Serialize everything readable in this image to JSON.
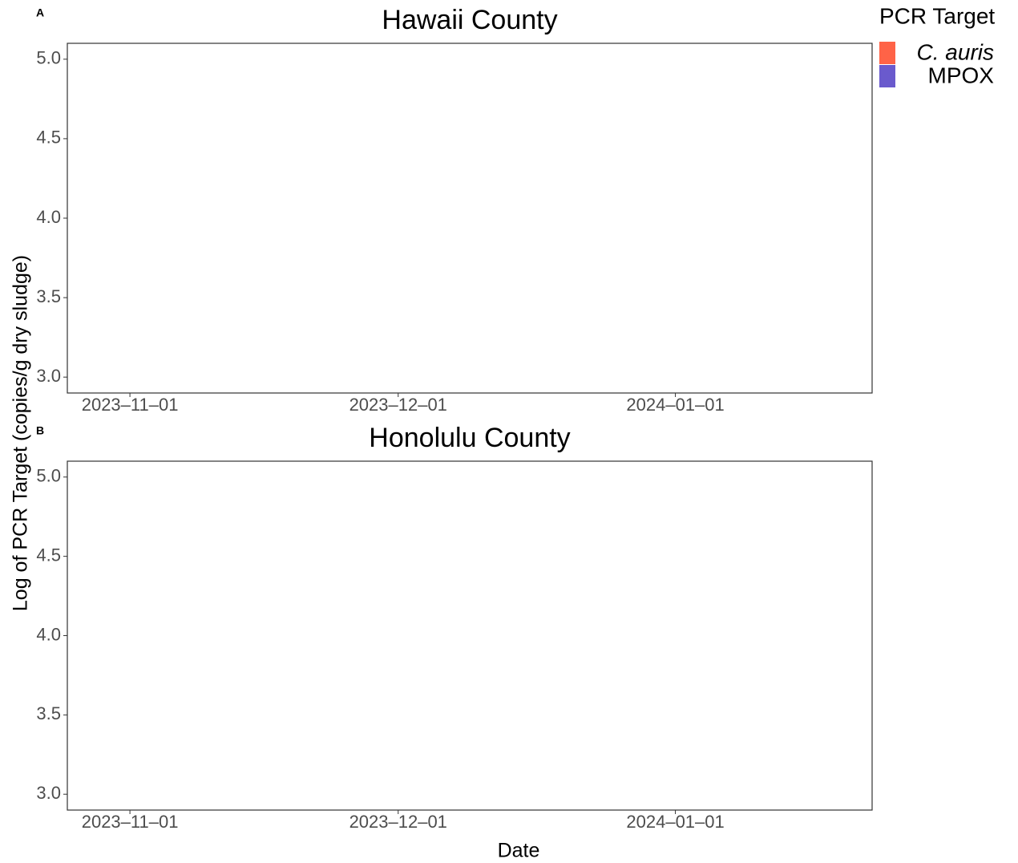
{
  "chart_data": [
    {
      "type": "bar",
      "tag": "A",
      "title": "Hawaii County",
      "ylabel": "Log of PCR Target (copies/g dry sludge)",
      "legend_title": "PCR Target",
      "x": [],
      "series": [
        {
          "name": "C. auris",
          "color": "#ff6347",
          "values": []
        },
        {
          "name": "MPOX",
          "color": "#6a5acd",
          "values": []
        }
      ],
      "xlim": [
        "2023-10-25",
        "2024-01-23"
      ],
      "xticks": [
        {
          "value": "2023-11-01",
          "label": "2023–11–01"
        },
        {
          "value": "2023-12-01",
          "label": "2023–12–01"
        },
        {
          "value": "2024-01-01",
          "label": "2024–01–01"
        }
      ],
      "ylim": [
        2.9,
        5.1
      ],
      "yticks": [
        {
          "value": 3,
          "label": "3.0"
        },
        {
          "value": 3.5,
          "label": "3.5"
        },
        {
          "value": 4,
          "label": "4.0"
        },
        {
          "value": 4.5,
          "label": "4.5"
        },
        {
          "value": 5,
          "label": "5.0"
        }
      ]
    },
    {
      "type": "bar",
      "tag": "B",
      "title": "Honolulu County",
      "xlabel": "Date",
      "x": [],
      "series": [],
      "xlim": [
        "2023-10-25",
        "2024-01-23"
      ],
      "xticks": [
        {
          "value": "2023-11-01",
          "label": "2023–11–01"
        },
        {
          "value": "2023-12-01",
          "label": "2023–12–01"
        },
        {
          "value": "2024-01-01",
          "label": "2024–01–01"
        }
      ],
      "ylim": [
        2.9,
        5.1
      ],
      "yticks": [
        {
          "value": 3,
          "label": "3.0"
        },
        {
          "value": 3.5,
          "label": "3.5"
        },
        {
          "value": 4,
          "label": "4.0"
        },
        {
          "value": 4.5,
          "label": "4.5"
        },
        {
          "value": 5,
          "label": "5.0"
        }
      ]
    }
  ]
}
